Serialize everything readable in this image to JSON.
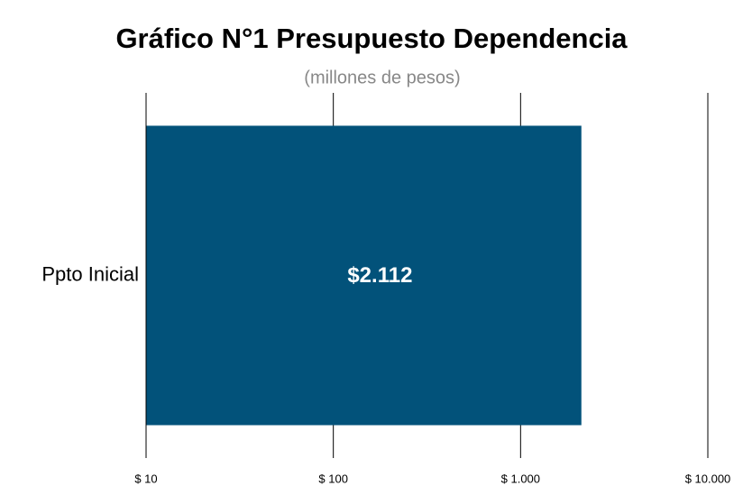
{
  "chart_data": {
    "type": "bar",
    "orientation": "horizontal",
    "title": "Gráfico N°1 Presupuesto Dependencia",
    "subtitle": "(millones de pesos)",
    "categories": [
      "Ppto Inicial"
    ],
    "values": [
      2112
    ],
    "value_labels": [
      "$2.112"
    ],
    "color": "#02527a",
    "xscale": "log",
    "xlim": [
      10,
      10000
    ],
    "xticks": [
      {
        "value": 10,
        "label": "$ 10"
      },
      {
        "value": 100,
        "label": "$ 100"
      },
      {
        "value": 1000,
        "label": "$ 1.000"
      },
      {
        "value": 10000,
        "label": "$ 10.000"
      }
    ],
    "grid": true
  }
}
